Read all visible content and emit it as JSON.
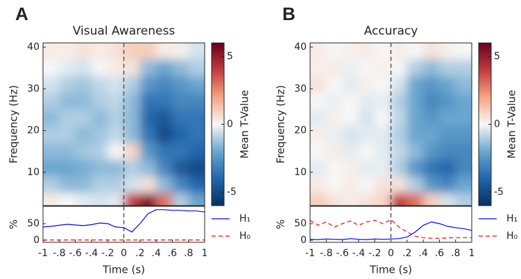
{
  "chart_data": [
    {
      "type": "heatmap",
      "panel_label": "A",
      "title": "Visual Awareness",
      "ylabel": "Frequency (Hz)",
      "x": [
        -0.9,
        -0.7,
        -0.5,
        -0.3,
        -0.1,
        0.1,
        0.3,
        0.5,
        0.7,
        0.9
      ],
      "y": [
        39,
        35,
        31,
        27,
        23,
        19,
        15,
        11,
        7,
        3
      ],
      "values": [
        [
          0.3,
          0.2,
          0.5,
          0.3,
          0.5,
          1,
          1,
          0.3,
          0.2,
          -0.5
        ],
        [
          0,
          -0.3,
          -0.5,
          0,
          0.3,
          0.5,
          -1.5,
          -2,
          -1.5,
          -1
        ],
        [
          -0.5,
          -1,
          -1.2,
          -0.8,
          -0.5,
          -1,
          -2.5,
          -3,
          -2.5,
          -2
        ],
        [
          -1,
          -1.5,
          -1.5,
          -1,
          -0.8,
          -1.5,
          -3.5,
          -3.5,
          -3,
          -3
        ],
        [
          -1.5,
          -1,
          -1,
          -1.5,
          -1,
          -1.5,
          -4,
          -4.5,
          -3.5,
          -3.5
        ],
        [
          -1,
          -1,
          -1.5,
          -1.2,
          -0.8,
          -1.5,
          -3.5,
          -5,
          -4,
          -3.5
        ],
        [
          -1.5,
          -1.5,
          -1.2,
          -1,
          0,
          0.8,
          -2.5,
          -3.5,
          -3.5,
          -4
        ],
        [
          -2,
          -2,
          -1.8,
          -1.5,
          -1.5,
          -1,
          -1.5,
          -3,
          -4.5,
          -5
        ],
        [
          -1,
          -1.5,
          -1.5,
          -1,
          -1,
          -0.5,
          0.5,
          -1.5,
          -3,
          -4
        ],
        [
          0.3,
          0,
          -0.3,
          -0.5,
          -0.3,
          4,
          5.5,
          3,
          -1,
          -2
        ]
      ],
      "xlim": [
        -1,
        1
      ],
      "ylim": [
        2,
        41
      ],
      "yticks": [
        10,
        20,
        30,
        40
      ],
      "vline_x": 0,
      "colorbar": {
        "label": "Mean T-Value",
        "lim": [
          -6,
          6
        ],
        "ticks": [
          -5,
          0,
          5
        ]
      }
    },
    {
      "type": "line",
      "xlabel": "Time (s)",
      "ylabel": "%",
      "x": [
        -1,
        -0.9,
        -0.8,
        -0.7,
        -0.6,
        -0.5,
        -0.4,
        -0.3,
        -0.2,
        -0.1,
        0,
        0.1,
        0.2,
        0.3,
        0.4,
        0.5,
        0.6,
        0.7,
        0.8,
        0.9,
        1
      ],
      "series": [
        {
          "name": "H₁",
          "color": "#0000ff",
          "style": "solid",
          "values": [
            40,
            42,
            45,
            48,
            46,
            44,
            47,
            52,
            50,
            40,
            38,
            25,
            50,
            80,
            92,
            92,
            90,
            90,
            88,
            88,
            85
          ]
        },
        {
          "name": "H₀",
          "color": "#ff0000",
          "style": "dashed",
          "values": [
            1,
            1,
            1,
            1,
            1,
            1,
            1,
            1,
            1,
            1,
            1,
            1,
            1,
            1,
            1,
            1,
            1,
            1,
            1,
            1,
            1
          ]
        }
      ],
      "xlim": [
        -1,
        1
      ],
      "ylim": [
        -6,
        102
      ],
      "yticks": [
        0,
        50
      ],
      "vline_x": 0,
      "xticks": [
        {
          "value": -1,
          "label": "-1"
        },
        {
          "value": -0.8,
          "label": "-.8"
        },
        {
          "value": -0.6,
          "label": "-.6"
        },
        {
          "value": -0.4,
          "label": "-.4"
        },
        {
          "value": -0.2,
          "label": "-.2"
        },
        0,
        {
          "value": 0.2,
          "label": ".2"
        },
        {
          "value": 0.4,
          "label": ".4"
        },
        {
          "value": 0.6,
          "label": ".6"
        },
        {
          "value": 0.8,
          "label": ".8"
        },
        1
      ]
    },
    {
      "type": "heatmap",
      "panel_label": "B",
      "title": "Accuracy",
      "ylabel": "Frequency (Hz)",
      "x": [
        -0.9,
        -0.7,
        -0.5,
        -0.3,
        -0.1,
        0.1,
        0.3,
        0.5,
        0.7,
        0.9
      ],
      "y": [
        39,
        35,
        31,
        27,
        23,
        19,
        15,
        11,
        7,
        3
      ],
      "values": [
        [
          0.3,
          0,
          0.2,
          0.3,
          0,
          0.3,
          0,
          0.5,
          0.2,
          0
        ],
        [
          0.2,
          0.3,
          -0.2,
          0,
          0.2,
          0,
          -1,
          -1.5,
          -1,
          -1
        ],
        [
          0.5,
          0,
          -0.3,
          0.2,
          0,
          -0.5,
          -2,
          -2.5,
          -2,
          -1.5
        ],
        [
          0,
          -0.2,
          0,
          -0.3,
          -0.2,
          -1,
          -2,
          -3,
          -2.5,
          -2
        ],
        [
          -0.3,
          0.2,
          0,
          -0.5,
          0,
          -0.8,
          -2,
          -2.5,
          -2,
          -2
        ],
        [
          0.2,
          -0.2,
          -0.5,
          -0.3,
          -0.3,
          -1,
          -2,
          -2,
          -2.5,
          -2.5
        ],
        [
          0,
          0.3,
          -0.3,
          0,
          -0.3,
          -0.8,
          -1.5,
          -2.5,
          -3,
          -3
        ],
        [
          -0.3,
          0,
          0.2,
          -0.3,
          -0.2,
          -1,
          -2.5,
          -3.5,
          -4,
          -3
        ],
        [
          0.3,
          0,
          0.3,
          0,
          0.5,
          0.5,
          -1,
          -2.5,
          -3,
          -2
        ],
        [
          1,
          0.5,
          0.3,
          0.5,
          0.8,
          4,
          3,
          1,
          -0.5,
          -1
        ]
      ],
      "xlim": [
        -1,
        1
      ],
      "ylim": [
        2,
        41
      ],
      "yticks": [
        10,
        20,
        30,
        40
      ],
      "vline_x": 0,
      "colorbar": {
        "label": "Mean T-Value",
        "lim": [
          -6,
          6
        ],
        "ticks": [
          -5,
          0,
          5
        ]
      }
    },
    {
      "type": "line",
      "xlabel": "Time (s)",
      "ylabel": "%",
      "x": [
        -1,
        -0.9,
        -0.8,
        -0.7,
        -0.6,
        -0.5,
        -0.4,
        -0.3,
        -0.2,
        -0.1,
        0,
        0.1,
        0.2,
        0.3,
        0.4,
        0.5,
        0.6,
        0.7,
        0.8,
        0.9,
        1
      ],
      "series": [
        {
          "name": "H₁",
          "color": "#0000ff",
          "style": "solid",
          "values": [
            3,
            2,
            4,
            3,
            2,
            5,
            3,
            2,
            4,
            3,
            4,
            5,
            10,
            25,
            45,
            55,
            50,
            42,
            38,
            35,
            30
          ]
        },
        {
          "name": "H₀",
          "color": "#ff0000",
          "style": "dashed",
          "values": [
            60,
            45,
            55,
            40,
            50,
            58,
            45,
            55,
            60,
            50,
            62,
            40,
            25,
            12,
            8,
            6,
            6,
            7,
            8,
            8,
            8
          ]
        }
      ],
      "xlim": [
        -1,
        1
      ],
      "ylim": [
        -6,
        102
      ],
      "yticks": [
        0,
        50
      ],
      "vline_x": 0,
      "xticks": [
        {
          "value": -1,
          "label": "-1"
        },
        {
          "value": -0.8,
          "label": "-.8"
        },
        {
          "value": -0.6,
          "label": "-.6"
        },
        {
          "value": -0.4,
          "label": "-.4"
        },
        {
          "value": -0.2,
          "label": "-.2"
        },
        0,
        {
          "value": 0.2,
          "label": ".2"
        },
        {
          "value": 0.4,
          "label": ".4"
        },
        {
          "value": 0.6,
          "label": ".6"
        },
        {
          "value": 0.8,
          "label": ".8"
        },
        1
      ]
    }
  ]
}
